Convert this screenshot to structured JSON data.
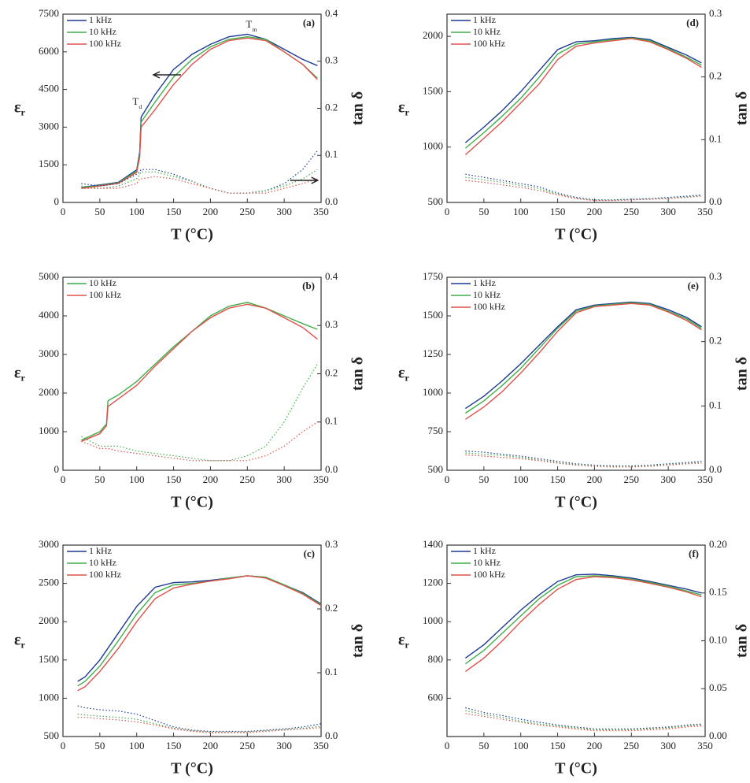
{
  "chart_data": [
    {
      "type": "line",
      "label": "(a)",
      "xlabel": "T (°C)",
      "ylabel": {
        "main": "ε",
        "sub": "r"
      },
      "y2label": "tan δ",
      "annotations": [
        {
          "main": "T",
          "sub": "m"
        },
        {
          "main": "T",
          "sub": "d"
        }
      ],
      "xlim": [
        0,
        350
      ],
      "xticks": [
        0,
        50,
        100,
        150,
        200,
        250,
        300,
        350
      ],
      "ylim": [
        0,
        7500
      ],
      "yticks": [
        0,
        1500,
        3000,
        4500,
        6000,
        7500
      ],
      "y2lim": [
        0,
        0.4
      ],
      "y2ticks": [
        {
          "value": 0,
          "label": "0.0"
        },
        0.1,
        0.2,
        0.3,
        0.4
      ],
      "x": [
        25,
        50,
        75,
        100,
        104,
        106,
        125,
        150,
        175,
        200,
        225,
        250,
        275,
        300,
        325,
        345
      ],
      "series": [
        {
          "name": "1 kHz",
          "color": "#1f3a93",
          "values": [
            600,
            700,
            800,
            1300,
            2000,
            3400,
            4300,
            5300,
            5900,
            6300,
            6600,
            6700,
            6500,
            6100,
            5700,
            5450
          ]
        },
        {
          "name": "10 kHz",
          "color": "#3fae49",
          "values": [
            580,
            680,
            780,
            1250,
            1900,
            3200,
            4000,
            5000,
            5700,
            6200,
            6500,
            6600,
            6500,
            6000,
            5500,
            4950
          ]
        },
        {
          "name": "100 kHz",
          "color": "#e0504a",
          "values": [
            560,
            660,
            760,
            1200,
            1800,
            3000,
            3700,
            4700,
            5500,
            6100,
            6450,
            6550,
            6450,
            6000,
            5500,
            4900
          ]
        },
        {
          "axis": "y2",
          "style": "dotted",
          "color": "#1f3a93",
          "values": [
            0.04,
            0.035,
            0.04,
            0.06,
            0.065,
            0.07,
            0.07,
            0.06,
            0.045,
            0.03,
            0.02,
            0.02,
            0.025,
            0.04,
            0.07,
            0.11
          ]
        },
        {
          "axis": "y2",
          "style": "dotted",
          "color": "#3fae49",
          "values": [
            0.035,
            0.03,
            0.035,
            0.05,
            0.06,
            0.065,
            0.065,
            0.055,
            0.045,
            0.03,
            0.02,
            0.02,
            0.025,
            0.035,
            0.05,
            0.07
          ]
        },
        {
          "axis": "y2",
          "style": "dotted",
          "color": "#e0504a",
          "values": [
            0.03,
            0.03,
            0.03,
            0.04,
            0.05,
            0.05,
            0.055,
            0.05,
            0.04,
            0.03,
            0.02,
            0.02,
            0.02,
            0.03,
            0.04,
            0.05
          ]
        }
      ]
    },
    {
      "type": "line",
      "label": "(b)",
      "xlabel": "T (°C)",
      "ylabel": {
        "main": "ε",
        "sub": "r"
      },
      "y2label": "tan δ",
      "xlim": [
        0,
        350
      ],
      "xticks": [
        0,
        50,
        100,
        150,
        200,
        250,
        300,
        350
      ],
      "ylim": [
        0,
        5000
      ],
      "yticks": [
        0,
        1000,
        2000,
        3000,
        4000,
        5000
      ],
      "y2lim": [
        0,
        0.4
      ],
      "y2ticks": [
        {
          "value": 0,
          "label": "0.0"
        },
        0.1,
        0.2,
        0.3,
        0.4
      ],
      "x": [
        25,
        50,
        59,
        61,
        75,
        100,
        125,
        150,
        175,
        200,
        225,
        250,
        275,
        300,
        325,
        345
      ],
      "series": [
        {
          "name": "10 kHz",
          "color": "#3fae49",
          "values": [
            780,
            1000,
            1200,
            1800,
            1950,
            2300,
            2750,
            3200,
            3600,
            4000,
            4250,
            4350,
            4200,
            4000,
            3800,
            3650
          ]
        },
        {
          "name": "100 kHz",
          "color": "#e0504a",
          "values": [
            750,
            950,
            1150,
            1650,
            1850,
            2200,
            2700,
            3150,
            3600,
            3950,
            4200,
            4300,
            4200,
            3950,
            3700,
            3400
          ]
        },
        {
          "axis": "y2",
          "style": "dotted",
          "color": "#3fae49",
          "values": [
            0.07,
            0.05,
            0.05,
            0.05,
            0.05,
            0.04,
            0.035,
            0.03,
            0.025,
            0.02,
            0.02,
            0.03,
            0.05,
            0.1,
            0.17,
            0.22
          ]
        },
        {
          "axis": "y2",
          "style": "dotted",
          "color": "#e0504a",
          "values": [
            0.06,
            0.045,
            0.045,
            0.045,
            0.04,
            0.035,
            0.03,
            0.025,
            0.02,
            0.02,
            0.02,
            0.02,
            0.03,
            0.05,
            0.08,
            0.1
          ]
        }
      ]
    },
    {
      "type": "line",
      "label": "(c)",
      "xlabel": "T (°C)",
      "ylabel": {
        "main": "ε",
        "sub": "r"
      },
      "y2label": "tan δ",
      "xlim": [
        0,
        350
      ],
      "xticks": [
        0,
        50,
        100,
        150,
        200,
        250,
        300,
        350
      ],
      "ylim": [
        500,
        3000
      ],
      "yticks": [
        500,
        1000,
        1500,
        2000,
        2500,
        3000
      ],
      "y2lim": [
        0,
        0.3
      ],
      "y2ticks": [
        {
          "value": 0,
          "label": "0.0"
        },
        0.1,
        0.2,
        0.3
      ],
      "x": [
        20,
        30,
        50,
        75,
        100,
        125,
        150,
        175,
        200,
        225,
        250,
        275,
        300,
        325,
        350
      ],
      "series": [
        {
          "name": "1 kHz",
          "color": "#1f3a93",
          "values": [
            1220,
            1280,
            1500,
            1850,
            2200,
            2450,
            2510,
            2520,
            2540,
            2570,
            2600,
            2580,
            2480,
            2380,
            2230
          ]
        },
        {
          "name": "10 kHz",
          "color": "#3fae49",
          "values": [
            1160,
            1220,
            1420,
            1750,
            2100,
            2380,
            2480,
            2500,
            2530,
            2570,
            2600,
            2580,
            2480,
            2370,
            2220
          ]
        },
        {
          "name": "100 kHz",
          "color": "#e0504a",
          "values": [
            1100,
            1150,
            1350,
            1650,
            2000,
            2300,
            2440,
            2490,
            2530,
            2560,
            2600,
            2570,
            2470,
            2360,
            2210
          ]
        },
        {
          "axis": "y2",
          "style": "dotted",
          "color": "#1f3a93",
          "values": [
            0.048,
            0.045,
            0.042,
            0.04,
            0.035,
            0.025,
            0.015,
            0.01,
            0.008,
            0.008,
            0.008,
            0.01,
            0.012,
            0.015,
            0.02
          ]
        },
        {
          "axis": "y2",
          "style": "dotted",
          "color": "#3fae49",
          "values": [
            0.035,
            0.034,
            0.032,
            0.03,
            0.027,
            0.02,
            0.013,
            0.009,
            0.007,
            0.007,
            0.007,
            0.009,
            0.011,
            0.013,
            0.016
          ]
        },
        {
          "axis": "y2",
          "style": "dotted",
          "color": "#e0504a",
          "values": [
            0.03,
            0.03,
            0.028,
            0.026,
            0.023,
            0.018,
            0.012,
            0.008,
            0.006,
            0.006,
            0.006,
            0.008,
            0.01,
            0.012,
            0.014
          ]
        }
      ]
    },
    {
      "type": "line",
      "label": "(d)",
      "xlabel": "T (°C)",
      "ylabel": {
        "main": "ε",
        "sub": "r"
      },
      "y2label": "tan δ",
      "xlim": [
        0,
        350
      ],
      "xticks": [
        0,
        50,
        100,
        150,
        200,
        250,
        300,
        350
      ],
      "ylim": [
        500,
        2200
      ],
      "yticks": [
        500,
        1000,
        1500,
        2000
      ],
      "y2lim": [
        0,
        0.3
      ],
      "y2ticks": [
        {
          "value": 0,
          "label": "0.0"
        },
        0.1,
        0.2,
        0.3
      ],
      "x": [
        25,
        50,
        75,
        100,
        125,
        150,
        175,
        200,
        225,
        250,
        275,
        300,
        325,
        345
      ],
      "series": [
        {
          "name": "1 kHz",
          "color": "#1f3a93",
          "values": [
            1040,
            1180,
            1330,
            1500,
            1690,
            1880,
            1950,
            1960,
            1980,
            1990,
            1970,
            1900,
            1830,
            1760
          ]
        },
        {
          "name": "10 kHz",
          "color": "#3fae49",
          "values": [
            990,
            1130,
            1280,
            1440,
            1630,
            1840,
            1930,
            1950,
            1970,
            1985,
            1960,
            1890,
            1810,
            1740
          ]
        },
        {
          "name": "100 kHz",
          "color": "#e0504a",
          "values": [
            930,
            1080,
            1230,
            1400,
            1570,
            1790,
            1910,
            1940,
            1960,
            1980,
            1950,
            1880,
            1800,
            1720
          ]
        },
        {
          "axis": "y2",
          "style": "dotted",
          "color": "#1f3a93",
          "values": [
            0.045,
            0.04,
            0.035,
            0.03,
            0.025,
            0.015,
            0.008,
            0.004,
            0.004,
            0.005,
            0.006,
            0.008,
            0.01,
            0.012
          ]
        },
        {
          "axis": "y2",
          "style": "dotted",
          "color": "#3fae49",
          "values": [
            0.04,
            0.036,
            0.032,
            0.027,
            0.022,
            0.013,
            0.007,
            0.004,
            0.004,
            0.005,
            0.006,
            0.007,
            0.009,
            0.011
          ]
        },
        {
          "axis": "y2",
          "style": "dotted",
          "color": "#e0504a",
          "values": [
            0.035,
            0.032,
            0.028,
            0.024,
            0.019,
            0.012,
            0.006,
            0.003,
            0.003,
            0.004,
            0.005,
            0.006,
            0.008,
            0.01
          ]
        }
      ]
    },
    {
      "type": "line",
      "label": "(e)",
      "xlabel": "T (°C)",
      "ylabel": {
        "main": "ε",
        "sub": "r"
      },
      "y2label": "tan δ",
      "xlim": [
        0,
        350
      ],
      "xticks": [
        0,
        50,
        100,
        150,
        200,
        250,
        300,
        350
      ],
      "ylim": [
        500,
        1750
      ],
      "yticks": [
        500,
        750,
        1000,
        1250,
        1500,
        1750
      ],
      "y2lim": [
        0,
        0.3
      ],
      "y2ticks": [
        {
          "value": 0,
          "label": "0.0"
        },
        0.1,
        0.2,
        0.3
      ],
      "x": [
        25,
        50,
        75,
        100,
        125,
        150,
        175,
        200,
        225,
        250,
        275,
        300,
        325,
        345
      ],
      "series": [
        {
          "name": "1 kHz",
          "color": "#1f3a93",
          "values": [
            900,
            980,
            1080,
            1190,
            1310,
            1430,
            1540,
            1570,
            1580,
            1590,
            1580,
            1540,
            1490,
            1430
          ]
        },
        {
          "name": "10 kHz",
          "color": "#3fae49",
          "values": [
            870,
            950,
            1050,
            1160,
            1290,
            1420,
            1530,
            1565,
            1575,
            1585,
            1575,
            1530,
            1480,
            1420
          ]
        },
        {
          "name": "100 kHz",
          "color": "#e0504a",
          "values": [
            830,
            910,
            1010,
            1130,
            1260,
            1400,
            1520,
            1560,
            1570,
            1580,
            1570,
            1525,
            1470,
            1410
          ]
        },
        {
          "axis": "y2",
          "style": "dotted",
          "color": "#1f3a93",
          "values": [
            0.03,
            0.028,
            0.025,
            0.022,
            0.018,
            0.014,
            0.01,
            0.008,
            0.007,
            0.007,
            0.008,
            0.01,
            0.012,
            0.014
          ]
        },
        {
          "axis": "y2",
          "style": "dotted",
          "color": "#3fae49",
          "values": [
            0.027,
            0.025,
            0.023,
            0.02,
            0.016,
            0.012,
            0.009,
            0.007,
            0.006,
            0.006,
            0.007,
            0.009,
            0.011,
            0.012
          ]
        },
        {
          "axis": "y2",
          "style": "dotted",
          "color": "#e0504a",
          "values": [
            0.024,
            0.022,
            0.02,
            0.018,
            0.015,
            0.011,
            0.008,
            0.006,
            0.005,
            0.005,
            0.006,
            0.008,
            0.01,
            0.011
          ]
        }
      ]
    },
    {
      "type": "line",
      "label": "(f)",
      "xlabel": "T (°C)",
      "ylabel": {
        "main": "ε",
        "sub": "r"
      },
      "y2label": "tan δ",
      "xlim": [
        0,
        350
      ],
      "xticks": [
        0,
        50,
        100,
        150,
        200,
        250,
        300,
        350
      ],
      "ylim": [
        400,
        1400
      ],
      "yticks": [
        600,
        800,
        1000,
        1200,
        1400
      ],
      "y2lim": [
        0,
        0.2
      ],
      "y2ticks": [
        {
          "value": 0,
          "label": "0.00"
        },
        {
          "value": 0.05,
          "label": "0.05"
        },
        {
          "value": 0.1,
          "label": "0.10"
        },
        {
          "value": 0.15,
          "label": "0.15"
        },
        {
          "value": 0.2,
          "label": "0.20"
        }
      ],
      "x": [
        25,
        50,
        75,
        100,
        125,
        150,
        175,
        200,
        225,
        250,
        275,
        300,
        325,
        345
      ],
      "series": [
        {
          "name": "1 kHz",
          "color": "#1f3a93",
          "values": [
            810,
            880,
            970,
            1060,
            1140,
            1210,
            1245,
            1248,
            1240,
            1228,
            1210,
            1190,
            1170,
            1150
          ]
        },
        {
          "name": "10 kHz",
          "color": "#3fae49",
          "values": [
            780,
            850,
            940,
            1030,
            1120,
            1190,
            1235,
            1240,
            1235,
            1222,
            1205,
            1185,
            1160,
            1140
          ]
        },
        {
          "name": "100 kHz",
          "color": "#e0504a",
          "values": [
            740,
            810,
            900,
            1000,
            1090,
            1170,
            1220,
            1235,
            1230,
            1218,
            1200,
            1180,
            1155,
            1130
          ]
        },
        {
          "axis": "y2",
          "style": "dotted",
          "color": "#1f3a93",
          "values": [
            0.03,
            0.025,
            0.022,
            0.018,
            0.015,
            0.012,
            0.01,
            0.008,
            0.008,
            0.008,
            0.009,
            0.01,
            0.012,
            0.013
          ]
        },
        {
          "axis": "y2",
          "style": "dotted",
          "color": "#3fae49",
          "values": [
            0.027,
            0.023,
            0.02,
            0.016,
            0.013,
            0.011,
            0.009,
            0.007,
            0.007,
            0.007,
            0.008,
            0.009,
            0.011,
            0.012
          ]
        },
        {
          "axis": "y2",
          "style": "dotted",
          "color": "#e0504a",
          "values": [
            0.024,
            0.021,
            0.018,
            0.015,
            0.012,
            0.01,
            0.008,
            0.006,
            0.006,
            0.006,
            0.007,
            0.008,
            0.01,
            0.011
          ]
        }
      ]
    }
  ]
}
